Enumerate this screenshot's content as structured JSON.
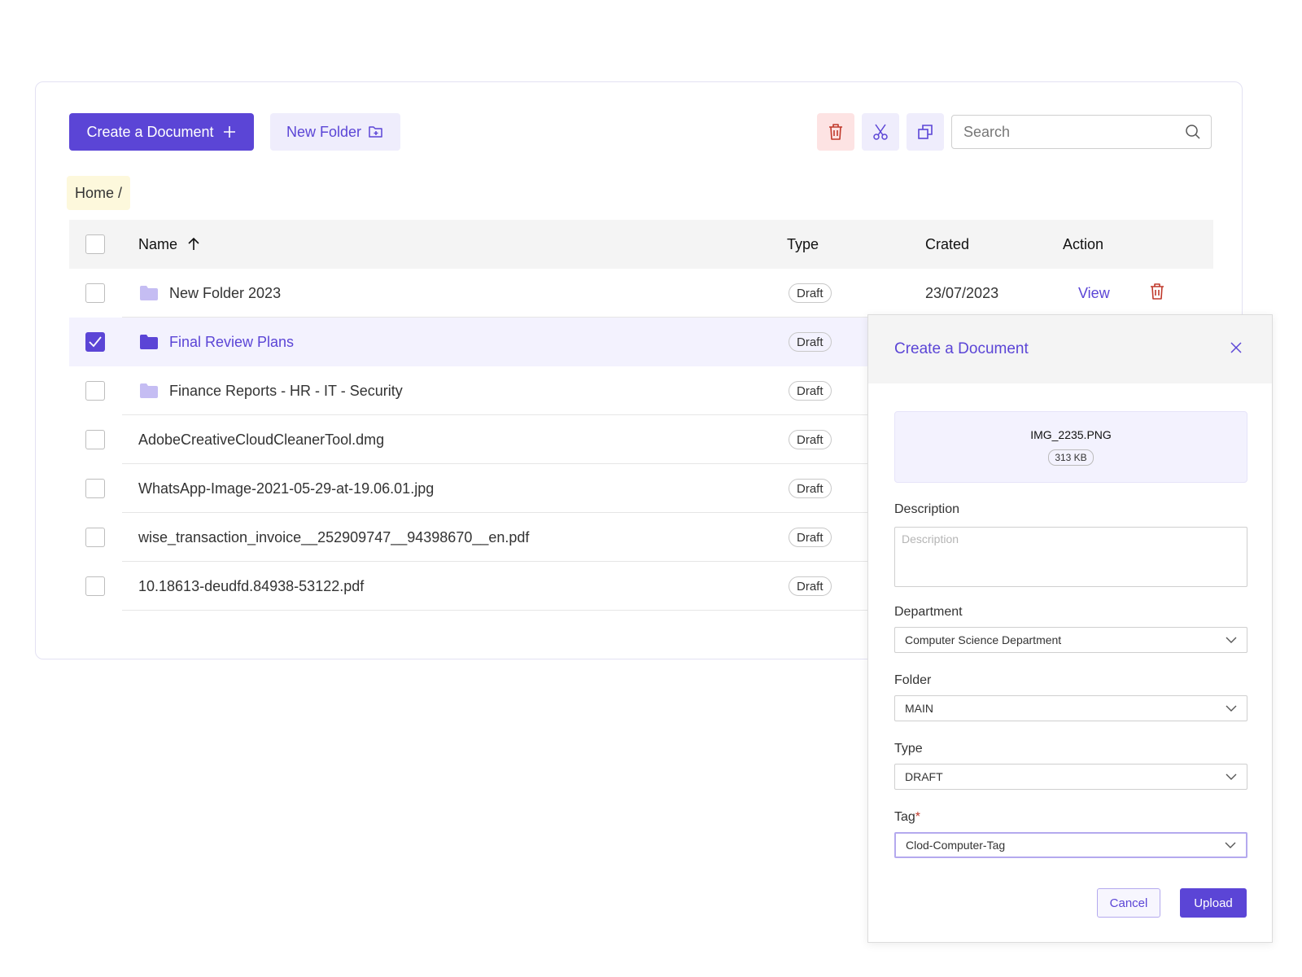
{
  "toolbar": {
    "create_label": "Create a Document",
    "new_folder_label": "New Folder",
    "search_placeholder": "Search"
  },
  "breadcrumb": {
    "text": "Home /"
  },
  "table": {
    "headers": {
      "name": "Name",
      "type": "Type",
      "created": "Crated",
      "action": "Action"
    },
    "rows": [
      {
        "name": "New Folder 2023",
        "is_folder": true,
        "selected": false,
        "type": "Draft",
        "created": "23/07/2023",
        "action": "View"
      },
      {
        "name": "Final Review Plans",
        "is_folder": true,
        "selected": true,
        "type": "Draft"
      },
      {
        "name": "Finance Reports - HR - IT - Security",
        "is_folder": true,
        "selected": false,
        "type": "Draft"
      },
      {
        "name": "AdobeCreativeCloudCleanerTool.dmg",
        "is_folder": false,
        "selected": false,
        "type": "Draft"
      },
      {
        "name": "WhatsApp-Image-2021-05-29-at-19.06.01.jpg",
        "is_folder": false,
        "selected": false,
        "type": "Draft"
      },
      {
        "name": "wise_transaction_invoice__252909747__94398670__en.pdf",
        "is_folder": false,
        "selected": false,
        "type": "Draft"
      },
      {
        "name": "10.18613-deudfd.84938-53122.pdf",
        "is_folder": false,
        "selected": false,
        "type": "Draft"
      }
    ]
  },
  "modal": {
    "title": "Create a Document",
    "file_name": "IMG_2235.PNG",
    "file_size": "313 KB",
    "description_label": "Description",
    "description_placeholder": "Description",
    "department_label": "Department",
    "department_value": "Computer Science Department",
    "folder_label": "Folder",
    "folder_value": "MAIN",
    "type_label": "Type",
    "type_value": "DRAFT",
    "tag_label": "Tag",
    "tag_required": "*",
    "tag_value": "Clod-Computer-Tag",
    "cancel_label": "Cancel",
    "upload_label": "Upload"
  },
  "colors": {
    "accent": "#5b45d6",
    "danger": "#c0392b",
    "folder_light": "#c5bdf3",
    "breadcrumb_bg": "#fdf8dc"
  }
}
